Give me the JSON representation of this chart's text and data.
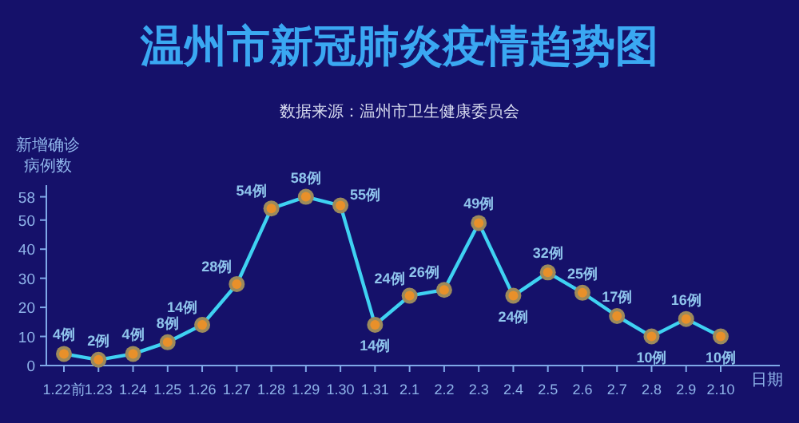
{
  "chart_data": {
    "type": "line",
    "title": "温州市新冠肺炎疫情趋势图",
    "subtitle": "数据来源：温州市卫生健康委员会",
    "xlabel": "日期",
    "ylabel": "新增确诊病例数",
    "categories": [
      "1.22前",
      "1.23",
      "1.24",
      "1.25",
      "1.26",
      "1.27",
      "1.28",
      "1.29",
      "1.30",
      "1.31",
      "2.1",
      "2.2",
      "2.3",
      "2.4",
      "2.5",
      "2.6",
      "2.7",
      "2.8",
      "2.9",
      "2.10"
    ],
    "values": [
      4,
      2,
      4,
      8,
      14,
      28,
      54,
      58,
      55,
      14,
      24,
      26,
      49,
      24,
      32,
      25,
      17,
      10,
      16,
      10
    ],
    "value_labels": [
      "4例",
      "2例",
      "4例",
      "8例",
      "14例",
      "28例",
      "54例",
      "58例",
      "55例",
      "14例",
      "24例",
      "26例",
      "49例",
      "24例",
      "32例",
      "25例",
      "17例",
      "10例",
      "16例",
      "10例"
    ],
    "color": "#3fd2f2",
    "marker": "circle",
    "ylim": [
      0,
      62
    ],
    "yticks": [
      0,
      10,
      20,
      30,
      40,
      50,
      58
    ]
  }
}
